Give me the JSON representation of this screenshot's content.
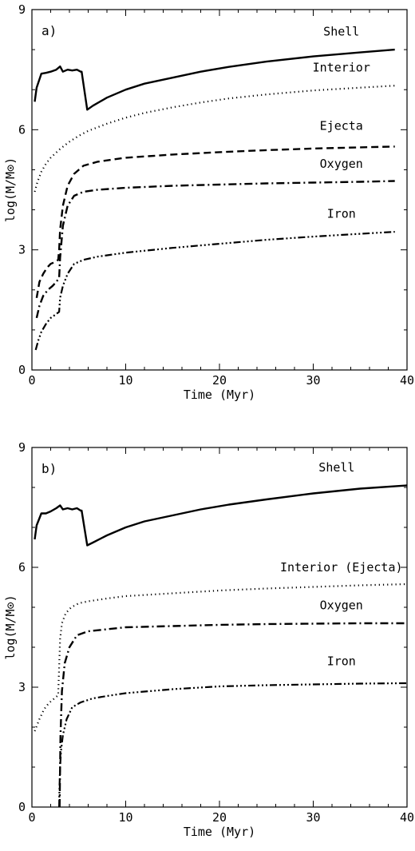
{
  "chart_data": [
    {
      "type": "line",
      "panel_label": "a)",
      "xlabel": "Time (Myr)",
      "ylabel": "log(M/M⊙)",
      "xlim": [
        0,
        40
      ],
      "ylim": [
        0,
        9
      ],
      "xticks": [
        0,
        10,
        20,
        30,
        40
      ],
      "yticks": [
        0,
        3,
        6,
        9
      ],
      "grid": false,
      "legend": "inline labels",
      "series": [
        {
          "name": "Shell",
          "style": "solid",
          "label_at": [
            33,
            8.35
          ],
          "x": [
            0.3,
            0.5,
            1.0,
            1.5,
            2.0,
            2.6,
            3.0,
            3.3,
            3.8,
            4.3,
            4.8,
            5.2,
            5.3,
            5.9,
            6.5,
            8,
            10,
            12,
            15,
            18,
            21,
            25,
            30,
            35,
            38.7
          ],
          "y": [
            6.7,
            7.05,
            7.4,
            7.42,
            7.45,
            7.5,
            7.58,
            7.45,
            7.5,
            7.48,
            7.5,
            7.45,
            7.45,
            6.5,
            6.6,
            6.8,
            7.0,
            7.15,
            7.3,
            7.45,
            7.57,
            7.7,
            7.83,
            7.93,
            8.0
          ]
        },
        {
          "name": "Interior",
          "style": "dotted",
          "label_at": [
            33,
            7.45
          ],
          "x": [
            0.3,
            0.6,
            1.0,
            1.5,
            2.0,
            3.0,
            4.0,
            5.0,
            6.0,
            8,
            10,
            12,
            15,
            18,
            21,
            25,
            30,
            35,
            38.7
          ],
          "y": [
            4.45,
            4.7,
            4.95,
            5.15,
            5.3,
            5.52,
            5.7,
            5.85,
            5.97,
            6.15,
            6.3,
            6.42,
            6.56,
            6.68,
            6.78,
            6.88,
            6.98,
            7.05,
            7.1
          ]
        },
        {
          "name": "Ejecta",
          "style": "dashed",
          "label_at": [
            33,
            6.0
          ],
          "x": [
            0.5,
            0.8,
            1.2,
            1.6,
            2.0,
            2.5,
            2.8,
            2.9,
            3.0,
            3.3,
            3.8,
            4.5,
            5.5,
            7,
            10,
            15,
            20,
            25,
            30,
            35,
            38.7
          ],
          "y": [
            1.8,
            2.2,
            2.4,
            2.55,
            2.65,
            2.7,
            2.75,
            3.0,
            3.5,
            4.1,
            4.6,
            4.9,
            5.1,
            5.2,
            5.3,
            5.38,
            5.44,
            5.49,
            5.53,
            5.56,
            5.58
          ]
        },
        {
          "name": "Oxygen",
          "style": "dashdot",
          "label_at": [
            33,
            5.05
          ],
          "x": [
            0.5,
            0.8,
            1.2,
            1.7,
            2.2,
            2.6,
            2.9,
            3.0,
            3.3,
            3.8,
            4.5,
            5.5,
            7,
            10,
            15,
            20,
            25,
            30,
            35,
            38.7
          ],
          "y": [
            1.3,
            1.6,
            1.85,
            2.0,
            2.1,
            2.2,
            2.3,
            2.8,
            3.6,
            4.1,
            4.35,
            4.45,
            4.5,
            4.55,
            4.6,
            4.63,
            4.66,
            4.68,
            4.7,
            4.72
          ]
        },
        {
          "name": "Iron",
          "style": "dashdotdotdot",
          "label_at": [
            33,
            3.8
          ],
          "x": [
            0.4,
            0.7,
            1.0,
            1.5,
            2.0,
            2.5,
            2.9,
            3.0,
            3.3,
            3.8,
            4.5,
            5.5,
            7,
            10,
            15,
            20,
            25,
            30,
            35,
            38.7
          ],
          "y": [
            0.5,
            0.75,
            0.95,
            1.15,
            1.3,
            1.38,
            1.45,
            1.8,
            2.1,
            2.4,
            2.65,
            2.75,
            2.83,
            2.93,
            3.05,
            3.15,
            3.25,
            3.33,
            3.4,
            3.45
          ]
        }
      ]
    },
    {
      "type": "line",
      "panel_label": "b)",
      "xlabel": "Time (Myr)",
      "ylabel": "log(M/M⊙)",
      "xlim": [
        0,
        40
      ],
      "ylim": [
        0,
        9
      ],
      "xticks": [
        0,
        10,
        20,
        30,
        40
      ],
      "yticks": [
        0,
        3,
        6,
        9
      ],
      "grid": false,
      "legend": "inline labels",
      "series": [
        {
          "name": "Shell",
          "style": "solid",
          "label_at": [
            32.5,
            8.4
          ],
          "x": [
            0.3,
            0.5,
            1.0,
            1.5,
            2.0,
            2.6,
            3.0,
            3.3,
            3.8,
            4.3,
            4.8,
            5.2,
            5.3,
            5.9,
            6.5,
            8,
            10,
            12,
            15,
            18,
            21,
            25,
            30,
            35,
            40
          ],
          "y": [
            6.7,
            7.05,
            7.35,
            7.35,
            7.4,
            7.48,
            7.55,
            7.45,
            7.48,
            7.45,
            7.48,
            7.42,
            7.42,
            6.55,
            6.62,
            6.8,
            7.0,
            7.15,
            7.3,
            7.45,
            7.57,
            7.7,
            7.85,
            7.97,
            8.05
          ]
        },
        {
          "name": "Interior (Ejecta)",
          "style": "dotted",
          "label_at": [
            33,
            5.9
          ],
          "x": [
            0.3,
            0.8,
            1.3,
            1.8,
            2.3,
            2.8,
            2.9,
            3.0,
            3.2,
            3.6,
            4.2,
            5.0,
            6.0,
            8,
            10,
            15,
            20,
            25,
            30,
            35,
            40
          ],
          "y": [
            1.9,
            2.2,
            2.45,
            2.6,
            2.7,
            2.8,
            3.5,
            4.2,
            4.6,
            4.85,
            5.0,
            5.1,
            5.15,
            5.22,
            5.28,
            5.35,
            5.42,
            5.47,
            5.51,
            5.55,
            5.58
          ]
        },
        {
          "name": "Oxygen",
          "style": "dashdot",
          "label_at": [
            33,
            4.95
          ],
          "x": [
            2.95,
            3.0,
            3.05,
            3.2,
            3.5,
            4.0,
            4.8,
            6,
            8,
            10,
            15,
            20,
            25,
            30,
            35,
            40
          ],
          "y": [
            0.0,
            1.0,
            1.8,
            2.9,
            3.6,
            4.0,
            4.3,
            4.4,
            4.45,
            4.5,
            4.53,
            4.56,
            4.58,
            4.59,
            4.6,
            4.6
          ]
        },
        {
          "name": "Iron",
          "style": "dashdotdotdot",
          "label_at": [
            33,
            3.55
          ],
          "x": [
            2.9,
            2.95,
            3.0,
            3.1,
            3.3,
            3.7,
            4.3,
            5.2,
            6.5,
            8,
            10,
            15,
            20,
            25,
            30,
            35,
            40
          ],
          "y": [
            0.0,
            0.6,
            1.0,
            1.4,
            1.8,
            2.2,
            2.5,
            2.62,
            2.72,
            2.78,
            2.85,
            2.95,
            3.02,
            3.05,
            3.07,
            3.09,
            3.1
          ]
        }
      ]
    }
  ]
}
